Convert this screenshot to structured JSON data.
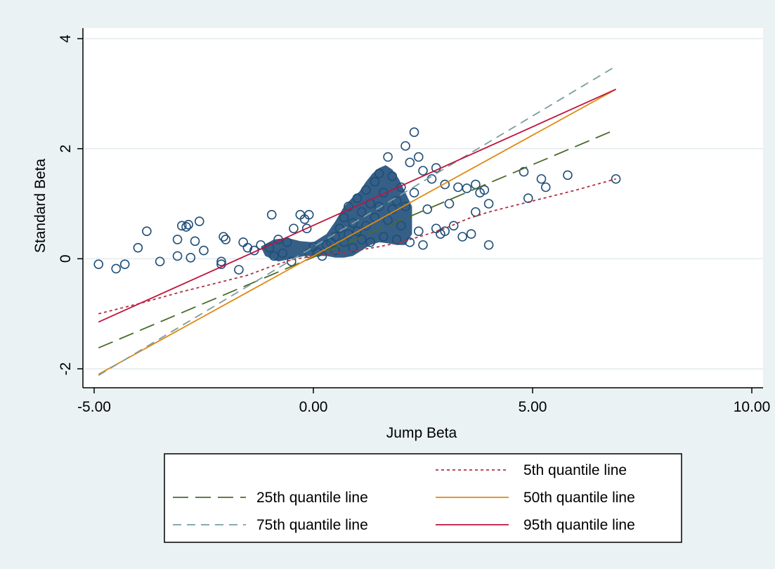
{
  "chart_data": {
    "type": "scatter",
    "xlabel": "Jump Beta",
    "ylabel": "Standard Beta",
    "xlim": [
      -5,
      10
    ],
    "ylim": [
      -2.3,
      4.2
    ],
    "x_ticks": [
      -5,
      0,
      5,
      10
    ],
    "x_tick_labels": [
      "-5.00",
      "0.00",
      "5.00",
      "10.00"
    ],
    "y_ticks": [
      -2,
      0,
      2,
      4
    ],
    "y_tick_labels": [
      "-2",
      "0",
      "2",
      "4"
    ],
    "grid": "horizontal",
    "legend_position": "bottom",
    "scatter_series": {
      "marker": "hollow circle",
      "color": "#1f4e79",
      "points": [
        [
          -4.9,
          -0.1
        ],
        [
          -4.5,
          -0.18
        ],
        [
          -4.3,
          -0.1
        ],
        [
          -4.0,
          0.2
        ],
        [
          -3.8,
          0.5
        ],
        [
          -3.5,
          -0.05
        ],
        [
          -3.1,
          0.05
        ],
        [
          -3.1,
          0.35
        ],
        [
          -3.0,
          0.6
        ],
        [
          -2.9,
          0.58
        ],
        [
          -2.85,
          0.62
        ],
        [
          -2.8,
          0.02
        ],
        [
          -2.7,
          0.32
        ],
        [
          -2.6,
          0.68
        ],
        [
          -2.5,
          0.15
        ],
        [
          -2.1,
          -0.05
        ],
        [
          -2.1,
          -0.1
        ],
        [
          -2.05,
          0.4
        ],
        [
          -2.0,
          0.35
        ],
        [
          -1.7,
          -0.2
        ],
        [
          -1.6,
          0.3
        ],
        [
          -1.5,
          0.2
        ],
        [
          -1.35,
          0.15
        ],
        [
          -1.2,
          0.25
        ],
        [
          -1.0,
          0.2
        ],
        [
          -0.9,
          0.05
        ],
        [
          -0.95,
          0.8
        ],
        [
          -0.8,
          0.35
        ],
        [
          -0.7,
          0.1
        ],
        [
          -0.6,
          0.3
        ],
        [
          -0.5,
          -0.05
        ],
        [
          -0.45,
          0.55
        ],
        [
          -0.3,
          0.8
        ],
        [
          -0.2,
          0.72
        ],
        [
          -0.15,
          0.55
        ],
        [
          -0.1,
          0.8
        ],
        [
          -0.1,
          0.1
        ],
        [
          0.0,
          0.22
        ],
        [
          0.1,
          0.12
        ],
        [
          0.2,
          0.05
        ],
        [
          0.3,
          0.25
        ],
        [
          0.4,
          0.3
        ],
        [
          0.5,
          0.4
        ],
        [
          0.5,
          0.15
        ],
        [
          0.6,
          0.55
        ],
        [
          0.7,
          0.3
        ],
        [
          0.7,
          0.75
        ],
        [
          0.8,
          0.45
        ],
        [
          0.8,
          0.95
        ],
        [
          0.9,
          0.2
        ],
        [
          0.9,
          0.65
        ],
        [
          1.0,
          1.1
        ],
        [
          1.0,
          0.5
        ],
        [
          1.1,
          0.35
        ],
        [
          1.1,
          0.85
        ],
        [
          1.2,
          1.25
        ],
        [
          1.2,
          0.6
        ],
        [
          1.3,
          1.0
        ],
        [
          1.3,
          0.3
        ],
        [
          1.4,
          1.4
        ],
        [
          1.4,
          0.75
        ],
        [
          1.5,
          0.95
        ],
        [
          1.5,
          1.55
        ],
        [
          1.6,
          0.4
        ],
        [
          1.6,
          1.2
        ],
        [
          1.7,
          1.85
        ],
        [
          1.7,
          0.7
        ],
        [
          1.8,
          1.5
        ],
        [
          1.8,
          0.9
        ],
        [
          1.9,
          1.05
        ],
        [
          1.9,
          0.35
        ],
        [
          2.0,
          1.3
        ],
        [
          2.0,
          0.6
        ],
        [
          2.1,
          2.05
        ],
        [
          2.1,
          0.95
        ],
        [
          2.2,
          1.75
        ],
        [
          2.2,
          0.3
        ],
        [
          2.3,
          2.3
        ],
        [
          2.3,
          1.2
        ],
        [
          2.4,
          1.85
        ],
        [
          2.4,
          0.5
        ],
        [
          2.5,
          1.6
        ],
        [
          2.5,
          0.25
        ],
        [
          2.6,
          0.9
        ],
        [
          2.7,
          1.45
        ],
        [
          2.8,
          1.65
        ],
        [
          2.8,
          0.55
        ],
        [
          2.9,
          0.45
        ],
        [
          3.0,
          1.35
        ],
        [
          3.0,
          0.5
        ],
        [
          3.1,
          1.0
        ],
        [
          3.2,
          0.6
        ],
        [
          3.3,
          1.3
        ],
        [
          3.4,
          0.4
        ],
        [
          3.5,
          1.28
        ],
        [
          3.6,
          0.45
        ],
        [
          3.7,
          1.35
        ],
        [
          3.7,
          0.85
        ],
        [
          3.8,
          1.2
        ],
        [
          3.9,
          1.25
        ],
        [
          4.0,
          0.25
        ],
        [
          4.0,
          1.0
        ],
        [
          4.8,
          1.58
        ],
        [
          4.9,
          1.1
        ],
        [
          5.2,
          1.45
        ],
        [
          5.3,
          1.3
        ],
        [
          5.8,
          1.52
        ],
        [
          6.9,
          1.45
        ]
      ]
    },
    "dense_cluster": {
      "color": "#1f4e79",
      "x": [
        -1.2,
        -0.9,
        -0.6,
        -0.3,
        0.0,
        0.3,
        0.5,
        0.7,
        0.9,
        1.05,
        1.2,
        1.35,
        1.5,
        1.65,
        1.8,
        1.95,
        2.1,
        2.25,
        2.25,
        2.1,
        1.9,
        1.7,
        1.5,
        1.3,
        1.1,
        0.9,
        0.7,
        0.5,
        0.3,
        0.1,
        -0.2,
        -0.5,
        -0.8,
        -1.1
      ],
      "y": [
        0.22,
        0.35,
        0.38,
        0.32,
        0.3,
        0.45,
        0.68,
        0.95,
        1.12,
        1.22,
        1.4,
        1.55,
        1.65,
        1.7,
        1.62,
        1.45,
        1.2,
        0.95,
        0.45,
        0.25,
        0.25,
        0.28,
        0.3,
        0.25,
        0.15,
        0.05,
        0.02,
        0.02,
        0.05,
        0.05,
        0.05,
        0.0,
        -0.05,
        0.05
      ]
    },
    "series": [
      {
        "name": "5th quantile line",
        "color": "#b03040",
        "style": "dotted",
        "x": [
          -4.9,
          -4.0,
          -3.0,
          -2.0,
          -1.5,
          -1.0,
          -0.5,
          0.0,
          0.5,
          1.0,
          1.5,
          2.0,
          2.5,
          3.0,
          3.5,
          4.0,
          4.5,
          5.0,
          5.5,
          6.0,
          6.9
        ],
        "y": [
          -1.0,
          -0.82,
          -0.6,
          -0.4,
          -0.3,
          -0.15,
          -0.02,
          0.05,
          0.1,
          0.15,
          0.22,
          0.3,
          0.42,
          0.55,
          0.72,
          0.85,
          0.95,
          1.05,
          1.15,
          1.25,
          1.45
        ]
      },
      {
        "name": "25th quantile line",
        "color": "#4a6b2a",
        "style": "long-dash",
        "x": [
          -4.9,
          6.9
        ],
        "y": [
          -1.62,
          2.35
        ]
      },
      {
        "name": "50th quantile line",
        "color": "#e08a10",
        "style": "solid",
        "x": [
          -4.9,
          6.9
        ],
        "y": [
          -2.1,
          3.08
        ]
      },
      {
        "name": "75th quantile line",
        "color": "#7a9ea0",
        "style": "dash",
        "x": [
          -4.9,
          6.9
        ],
        "y": [
          -2.12,
          3.5
        ]
      },
      {
        "name": "95th quantile line",
        "color": "#c0143c",
        "style": "solid",
        "x": [
          -4.9,
          6.9
        ],
        "y": [
          -1.15,
          3.08
        ]
      }
    ]
  }
}
